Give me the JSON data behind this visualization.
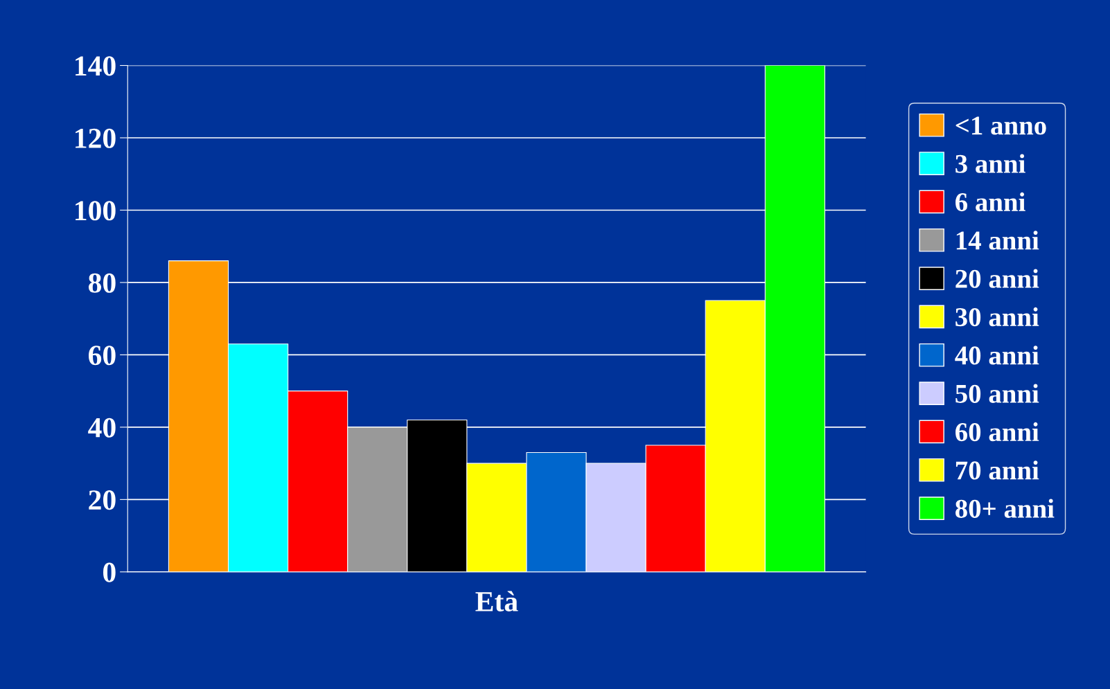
{
  "chart_data": {
    "type": "bar",
    "categories": [
      "Età"
    ],
    "series": [
      {
        "name": "<1 anno",
        "color": "#ff9900",
        "values": [
          86
        ]
      },
      {
        "name": "3 anni",
        "color": "#00ffff",
        "values": [
          63
        ]
      },
      {
        "name": "6 anni",
        "color": "#ff0000",
        "values": [
          50
        ]
      },
      {
        "name": "14 anni",
        "color": "#999999",
        "values": [
          40
        ]
      },
      {
        "name": "20 anni",
        "color": "#000000",
        "values": [
          42
        ]
      },
      {
        "name": "30 anni",
        "color": "#ffff00",
        "values": [
          30
        ]
      },
      {
        "name": "40 anni",
        "color": "#0066cc",
        "values": [
          33
        ]
      },
      {
        "name": "50 anni",
        "color": "#ccccff",
        "values": [
          30
        ]
      },
      {
        "name": "60 anni",
        "color": "#ff0000",
        "values": [
          35
        ]
      },
      {
        "name": "70 anni",
        "color": "#ffff00",
        "values": [
          75
        ]
      },
      {
        "name": "80+ anni",
        "color": "#00ff00",
        "values": [
          140
        ]
      }
    ],
    "ylim": [
      0,
      140
    ],
    "yticks": [
      0,
      20,
      40,
      60,
      80,
      100,
      120,
      140
    ],
    "grid": "y",
    "legend": "right"
  }
}
